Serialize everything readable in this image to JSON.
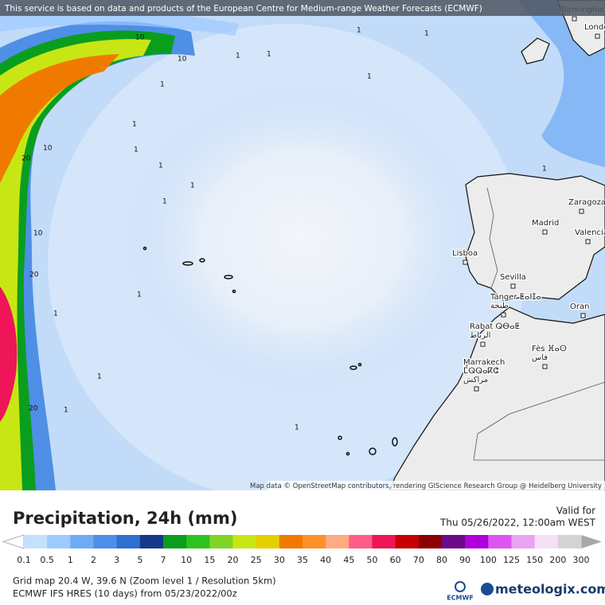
{
  "banner": "This service is based on data and products of the European Centre for Medium-range Weather Forecasts (ECMWF)",
  "cities": [
    {
      "lines": [
        "Birmingham"
      ]
    },
    {
      "lines": [
        "London"
      ]
    },
    {
      "lines": [
        "Zaragoza"
      ]
    },
    {
      "lines": [
        "Madrid"
      ]
    },
    {
      "lines": [
        "Valencia"
      ]
    },
    {
      "lines": [
        "Lisboa"
      ]
    },
    {
      "lines": [
        "Sevilla"
      ]
    },
    {
      "lines": [
        "Tanger ⵟⴰⵏⵊⴰ",
        "طنجة"
      ]
    },
    {
      "lines": [
        "Oran"
      ]
    },
    {
      "lines": [
        "Rabat ⵕⴱⴰⵟ",
        "الرباط"
      ]
    },
    {
      "lines": [
        "Fès ⴼⴰⵙ",
        "فاس"
      ]
    },
    {
      "lines": [
        "Marrakech",
        "ⵎⵕⵕⴰⴽⵛ",
        "مراكش"
      ]
    }
  ],
  "contour_labels": [
    "10",
    "10",
    "1",
    "1",
    "20",
    "10",
    "1",
    "1",
    "1",
    "10",
    "20",
    "1",
    "1",
    "20",
    "1",
    "1",
    "1",
    "1",
    "1",
    "1",
    "1",
    "1",
    "1",
    "1"
  ],
  "attribution": "Map data © OpenStreetMap contributors, rendering GIScience Research Group @ Heidelberg University",
  "legend": {
    "title": "Precipitation, 24h (mm)",
    "valid_label": "Valid for",
    "valid_time": "Thu 05/26/2022, 12:00am WEST",
    "ticks": [
      0.1,
      0.5,
      1,
      2,
      3,
      5,
      7,
      10,
      15,
      20,
      25,
      30,
      35,
      40,
      45,
      50,
      60,
      70,
      80,
      90,
      100,
      125,
      150,
      200,
      300
    ],
    "colors": [
      "#c4e0ff",
      "#9ccbff",
      "#6eaaf5",
      "#4b8fe8",
      "#2f6fd0",
      "#14398a",
      "#0a9e1e",
      "#2ec21e",
      "#7fd424",
      "#c8e614",
      "#e6cf00",
      "#f07a00",
      "#ff8f28",
      "#ffab80",
      "#ff5d87",
      "#ee1559",
      "#c60000",
      "#8a0000",
      "#6b0a8a",
      "#b000dc",
      "#dc55f0",
      "#eaa3f0",
      "#f7e0f7",
      "#d4d4d4"
    ]
  },
  "footer": {
    "grid": "Grid map 20.4 W, 39.6 N (Zoom level 1 / Resolution 5km)",
    "model": "ECMWF IFS HRES (10 days) from 05/23/2022/00z",
    "ecmwf": "ECMWF",
    "brand": "meteologix.com"
  }
}
